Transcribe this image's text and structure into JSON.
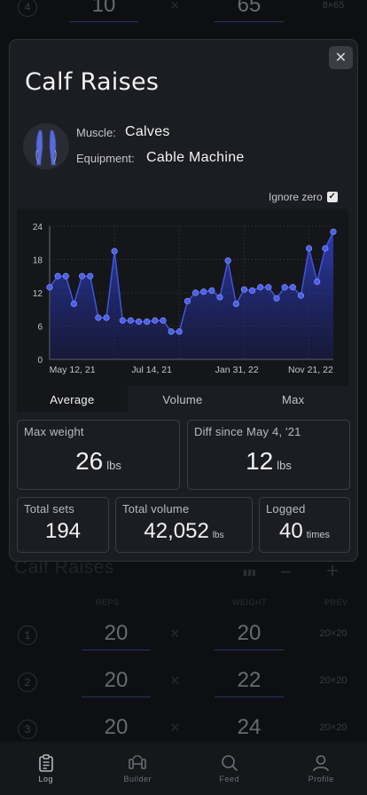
{
  "background": {
    "top_row": {
      "num": "4",
      "reps": "10",
      "weight": "65",
      "prev": "8×65"
    },
    "exercise_title": "Calf Raises",
    "col_reps": "REPS",
    "col_weight": "WEIGHT",
    "col_prev": "PREV",
    "rows": [
      {
        "num": "1",
        "reps": "20",
        "weight": "20",
        "prev": "20×20"
      },
      {
        "num": "2",
        "reps": "20",
        "weight": "22",
        "prev": "20×20"
      },
      {
        "num": "3",
        "reps": "20",
        "weight": "24",
        "prev": "20×20"
      }
    ],
    "minus": "−",
    "plus": "+"
  },
  "modal": {
    "title": "Calf Raises",
    "close": "✕",
    "muscle_label": "Muscle:",
    "muscle_value": "Calves",
    "equipment_label": "Equipment:",
    "equipment_value": "Cable Machine",
    "ignore_zero_label": "Ignore zero",
    "ignore_zero_checked": true,
    "tabs": [
      "Average",
      "Volume",
      "Max"
    ],
    "active_tab": "Average",
    "stats": {
      "max_weight": {
        "label": "Max weight",
        "value": "26",
        "unit": "lbs"
      },
      "diff": {
        "label": "Diff since May 4, '21",
        "value": "12",
        "unit": "lbs"
      },
      "total_sets": {
        "label": "Total sets",
        "value": "194"
      },
      "total_volume": {
        "label": "Total volume",
        "value": "42,052",
        "unit": "lbs"
      },
      "logged": {
        "label": "Logged",
        "value": "40",
        "unit": "times"
      }
    }
  },
  "chart_data": {
    "type": "area",
    "title": "",
    "xlabel": "",
    "ylabel": "",
    "x_tick_labels": [
      "May 12, 21",
      "Jul 14, 21",
      "Jan 31, 22",
      "Nov 21, 22"
    ],
    "y_ticks": [
      0,
      6,
      12,
      18,
      24
    ],
    "ylim": [
      0,
      24
    ],
    "grid": true,
    "color": "#3f54e0",
    "series": [
      {
        "values": [
          13,
          15,
          15,
          10,
          15,
          15,
          7.5,
          7.5,
          19.5,
          7,
          7,
          6.8,
          6.8,
          7,
          7,
          5,
          5,
          10.5,
          12,
          12.2,
          12.4,
          11.2,
          17.8,
          10,
          12.6,
          12.4,
          13,
          13,
          11,
          13,
          13,
          11.5,
          20,
          14,
          20,
          23
        ]
      }
    ]
  },
  "nav": {
    "items": [
      {
        "label": "Log",
        "icon": "clipboard-icon"
      },
      {
        "label": "Builder",
        "icon": "dumbbell-icon"
      },
      {
        "label": "Feed",
        "icon": "search-icon"
      },
      {
        "label": "Profile",
        "icon": "user-icon"
      }
    ],
    "active": "Log"
  },
  "colors": {
    "accent": "#3f54e0",
    "modal_bg": "#1c1d22",
    "page_bg": "#15171b"
  }
}
